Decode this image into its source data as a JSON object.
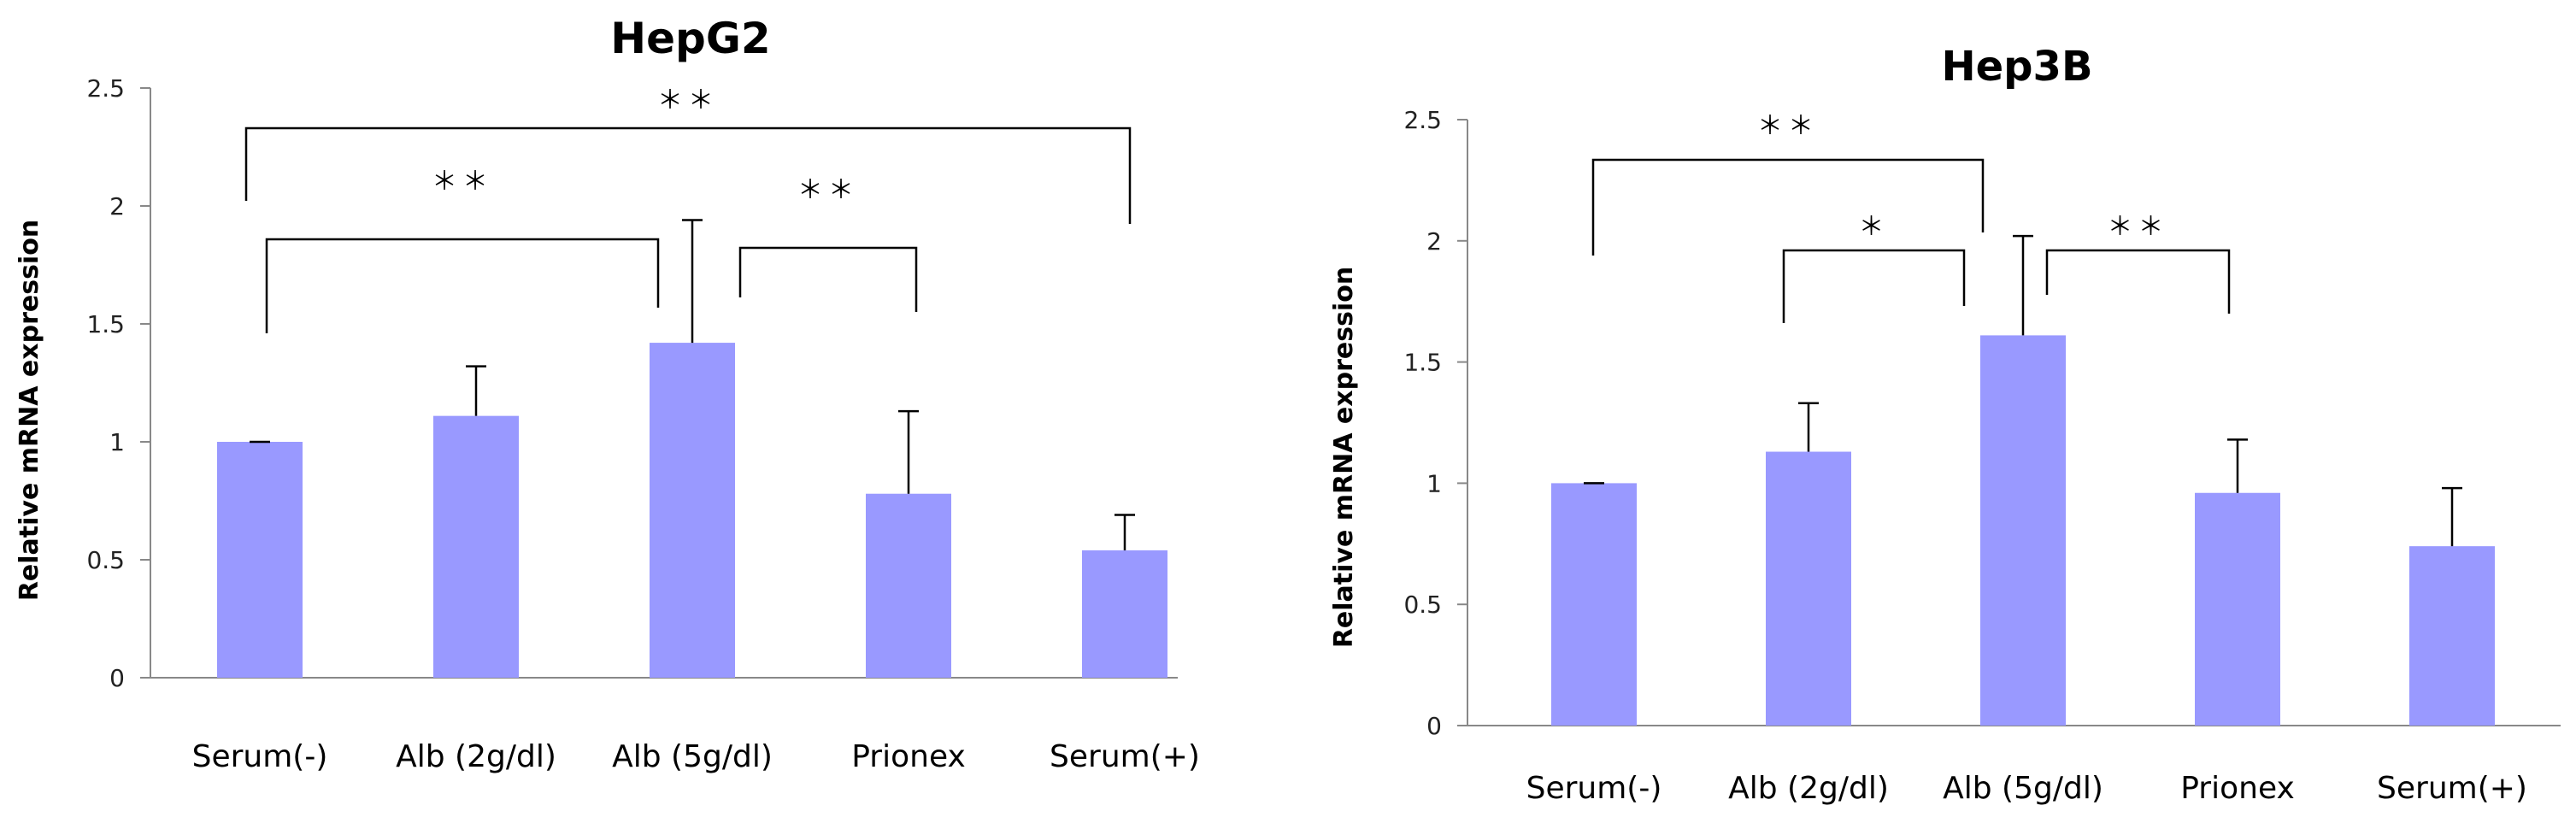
{
  "chart_data": [
    {
      "type": "bar",
      "title": "HepG2",
      "xlabel": "",
      "ylabel": "Relative mRNA expression",
      "ylim": [
        0,
        2.5
      ],
      "yticks": [
        "0",
        "0.5",
        "1",
        "1.5",
        "2",
        "2.5"
      ],
      "categories": [
        "Serum(-)",
        "Alb (2g/dl)",
        "Alb (5g/dl)",
        "Prionex",
        "Serum(+)"
      ],
      "values": [
        1.0,
        1.11,
        1.42,
        0.78,
        0.54
      ],
      "error": [
        0.0,
        0.21,
        0.52,
        0.35,
        0.15
      ],
      "bar_color": "#9999ff",
      "significance": [
        {
          "from": 0,
          "to": 4,
          "label": "＊＊"
        },
        {
          "from": 0,
          "to": 2,
          "label": "＊＊"
        },
        {
          "from": 2,
          "to": 3,
          "label": "＊＊"
        }
      ]
    },
    {
      "type": "bar",
      "title": "Hep3B",
      "xlabel": "",
      "ylabel": "Relative mRNA expression",
      "ylim": [
        0,
        2.5
      ],
      "yticks": [
        "0",
        "0.5",
        "1",
        "1.5",
        "2",
        "2.5"
      ],
      "categories": [
        "Serum(-)",
        "Alb (2g/dl)",
        "Alb (5g/dl)",
        "Prionex",
        "Serum(+)"
      ],
      "values": [
        1.0,
        1.13,
        1.61,
        0.96,
        0.74
      ],
      "error": [
        0.0,
        0.2,
        0.41,
        0.22,
        0.24
      ],
      "bar_color": "#9999ff",
      "significance": [
        {
          "from": 0,
          "to": 2,
          "label": "＊＊"
        },
        {
          "from": 1,
          "to": 2,
          "label": "＊"
        },
        {
          "from": 2,
          "to": 3,
          "label": "＊＊"
        }
      ]
    }
  ]
}
